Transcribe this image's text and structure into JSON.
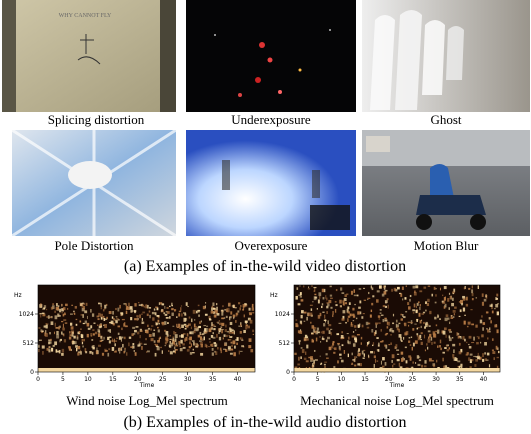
{
  "video": {
    "caption": "(a) Examples of in-the-wild video distortion",
    "examples": [
      {
        "label": "Splicing distortion"
      },
      {
        "label": "Underexposure"
      },
      {
        "label": "Ghost"
      },
      {
        "label": "Pole Distortion"
      },
      {
        "label": "Overexposure"
      },
      {
        "label": "Motion Blur"
      }
    ]
  },
  "audio": {
    "caption": "(b) Examples of in-the-wild audio distortion",
    "spectrograms": [
      {
        "label": "Wind noise Log_Mel spectrum",
        "y_axis_label": "Hz",
        "x_axis_label": "Time",
        "yticks": [
          0,
          512,
          1024
        ],
        "xticks": [
          0,
          5,
          10,
          15,
          20,
          25,
          30,
          35,
          40
        ]
      },
      {
        "label": "Mechanical noise Log_Mel spectrum",
        "y_axis_label": "Hz",
        "x_axis_label": "Time",
        "yticks": [
          0,
          512,
          1024
        ],
        "xticks": [
          0,
          5,
          10,
          15,
          20,
          25,
          30,
          35,
          40
        ]
      }
    ]
  }
}
